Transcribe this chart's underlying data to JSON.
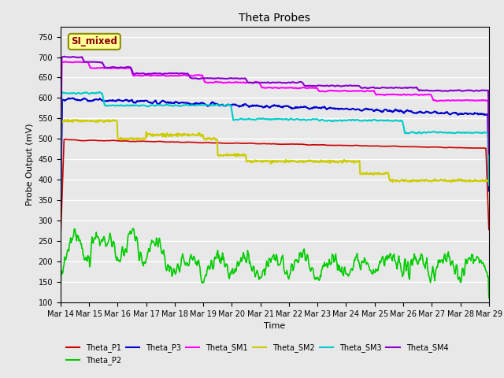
{
  "title": "Theta Probes",
  "xlabel": "Time",
  "ylabel": "Probe Output (mV)",
  "ylim": [
    100,
    775
  ],
  "yticks": [
    100,
    150,
    200,
    250,
    300,
    350,
    400,
    450,
    500,
    550,
    600,
    650,
    700,
    750
  ],
  "annotation_text": "SI_mixed",
  "annotation_color": "#8B0000",
  "annotation_bg": "#FFFF99",
  "annotation_border": "#8B8B00",
  "bg_color": "#E8E8E8",
  "plot_bg": "#E8E8E8",
  "grid_color": "white",
  "series": {
    "Theta_P1": {
      "color": "#CC0000",
      "lw": 1.2
    },
    "Theta_P2": {
      "color": "#00CC00",
      "lw": 1.2
    },
    "Theta_P3": {
      "color": "#0000CC",
      "lw": 1.5
    },
    "Theta_SM1": {
      "color": "#FF00FF",
      "lw": 1.5
    },
    "Theta_SM2": {
      "color": "#CCCC00",
      "lw": 1.5
    },
    "Theta_SM3": {
      "color": "#00CCCC",
      "lw": 1.5
    },
    "Theta_SM4": {
      "color": "#8800CC",
      "lw": 1.5
    }
  },
  "x_tick_labels": [
    "Mar 14",
    "Mar 15",
    "Mar 16",
    "Mar 17",
    "Mar 18",
    "Mar 19",
    "Mar 20",
    "Mar 21",
    "Mar 22",
    "Mar 23",
    "Mar 24",
    "Mar 25",
    "Mar 26",
    "Mar 27",
    "Mar 28",
    "Mar 29"
  ]
}
